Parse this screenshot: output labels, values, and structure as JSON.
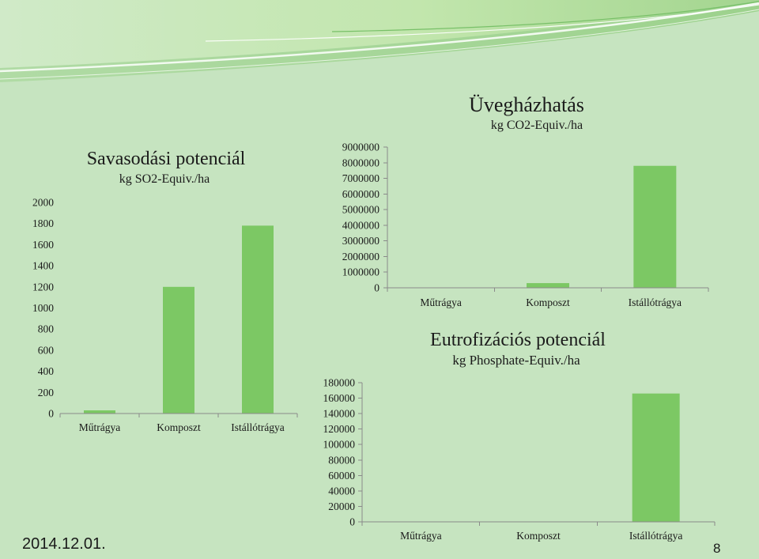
{
  "slide": {
    "date": "2014.12.01.",
    "page_number": "8",
    "colors": {
      "background": "#c6e4c0",
      "bar": "#7cc864",
      "text": "#1a1a1a",
      "axis": "#8a8a8a"
    }
  },
  "chart_data": [
    {
      "type": "bar",
      "title": "Savasodási potenciál",
      "subtitle": "kg SO2-Equiv./ha",
      "categories": [
        "Műtrágya",
        "Komposzt",
        "Istállótrágya"
      ],
      "values": [
        30,
        1200,
        1780
      ],
      "ylim": [
        0,
        2000
      ],
      "yticks": [
        0,
        200,
        400,
        600,
        800,
        1000,
        1200,
        1400,
        1600,
        1800,
        2000
      ],
      "grid": false,
      "legend": false
    },
    {
      "type": "bar",
      "title": "Üvegházhatás",
      "subtitle": "kg CO2-Equiv./ha",
      "categories": [
        "Műtrágya",
        "Komposzt",
        "Istállótrágya"
      ],
      "values": [
        0,
        300000,
        7800000
      ],
      "ylim": [
        0,
        9000000
      ],
      "yticks": [
        0,
        1000000,
        2000000,
        3000000,
        4000000,
        5000000,
        6000000,
        7000000,
        8000000,
        9000000
      ],
      "grid": false,
      "legend": false
    },
    {
      "type": "bar",
      "title": "Eutrofizációs potenciál",
      "subtitle": "kg Phosphate-Equiv./ha",
      "categories": [
        "Műtrágya",
        "Komposzt",
        "Istállótrágya"
      ],
      "values": [
        0,
        0,
        166000
      ],
      "ylim": [
        0,
        180000
      ],
      "yticks": [
        0,
        20000,
        40000,
        60000,
        80000,
        100000,
        120000,
        140000,
        160000,
        180000
      ],
      "grid": false,
      "legend": false
    }
  ]
}
